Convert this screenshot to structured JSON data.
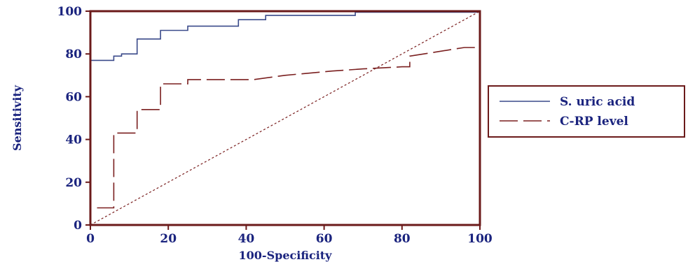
{
  "chart_data": {
    "type": "line",
    "title": "",
    "xlabel": "100-Specificity",
    "ylabel": "Sensitivity",
    "xlim": [
      0,
      100
    ],
    "ylim": [
      0,
      100
    ],
    "xticks": [
      0,
      20,
      40,
      60,
      80,
      100
    ],
    "yticks": [
      0,
      20,
      40,
      60,
      80,
      100
    ],
    "grid": false,
    "legend_position": "right",
    "series": [
      {
        "name": "S. uric acid",
        "color": "#3a4a8a",
        "style": "solid",
        "x": [
          0,
          0,
          0,
          6,
          6,
          8,
          8,
          12,
          12,
          18,
          18,
          25,
          25,
          38,
          38,
          45,
          45,
          68,
          68,
          100
        ],
        "y": [
          0,
          4,
          77,
          77,
          79,
          79,
          80,
          80,
          87,
          87,
          91,
          91,
          93,
          93,
          96,
          96,
          98,
          98,
          99.5,
          99.5
        ]
      },
      {
        "name": "C-RP level",
        "color": "#7a1f1f",
        "style": "dashed",
        "x": [
          0,
          0,
          6,
          6,
          12,
          12,
          18,
          18,
          25,
          25,
          42,
          50,
          62,
          70,
          80,
          82,
          82,
          96,
          100,
          100
        ],
        "y": [
          0,
          8,
          8,
          43,
          43,
          54,
          54,
          66,
          66,
          68,
          68,
          70,
          72,
          73,
          74,
          74,
          79,
          83,
          83,
          99.5
        ]
      },
      {
        "name": "",
        "color": "#7a1f1f",
        "style": "dotted",
        "x": [
          0,
          100
        ],
        "y": [
          0,
          100
        ]
      }
    ],
    "frame_color": "#6b1a1a",
    "tick_label_color": "#1a237e"
  }
}
